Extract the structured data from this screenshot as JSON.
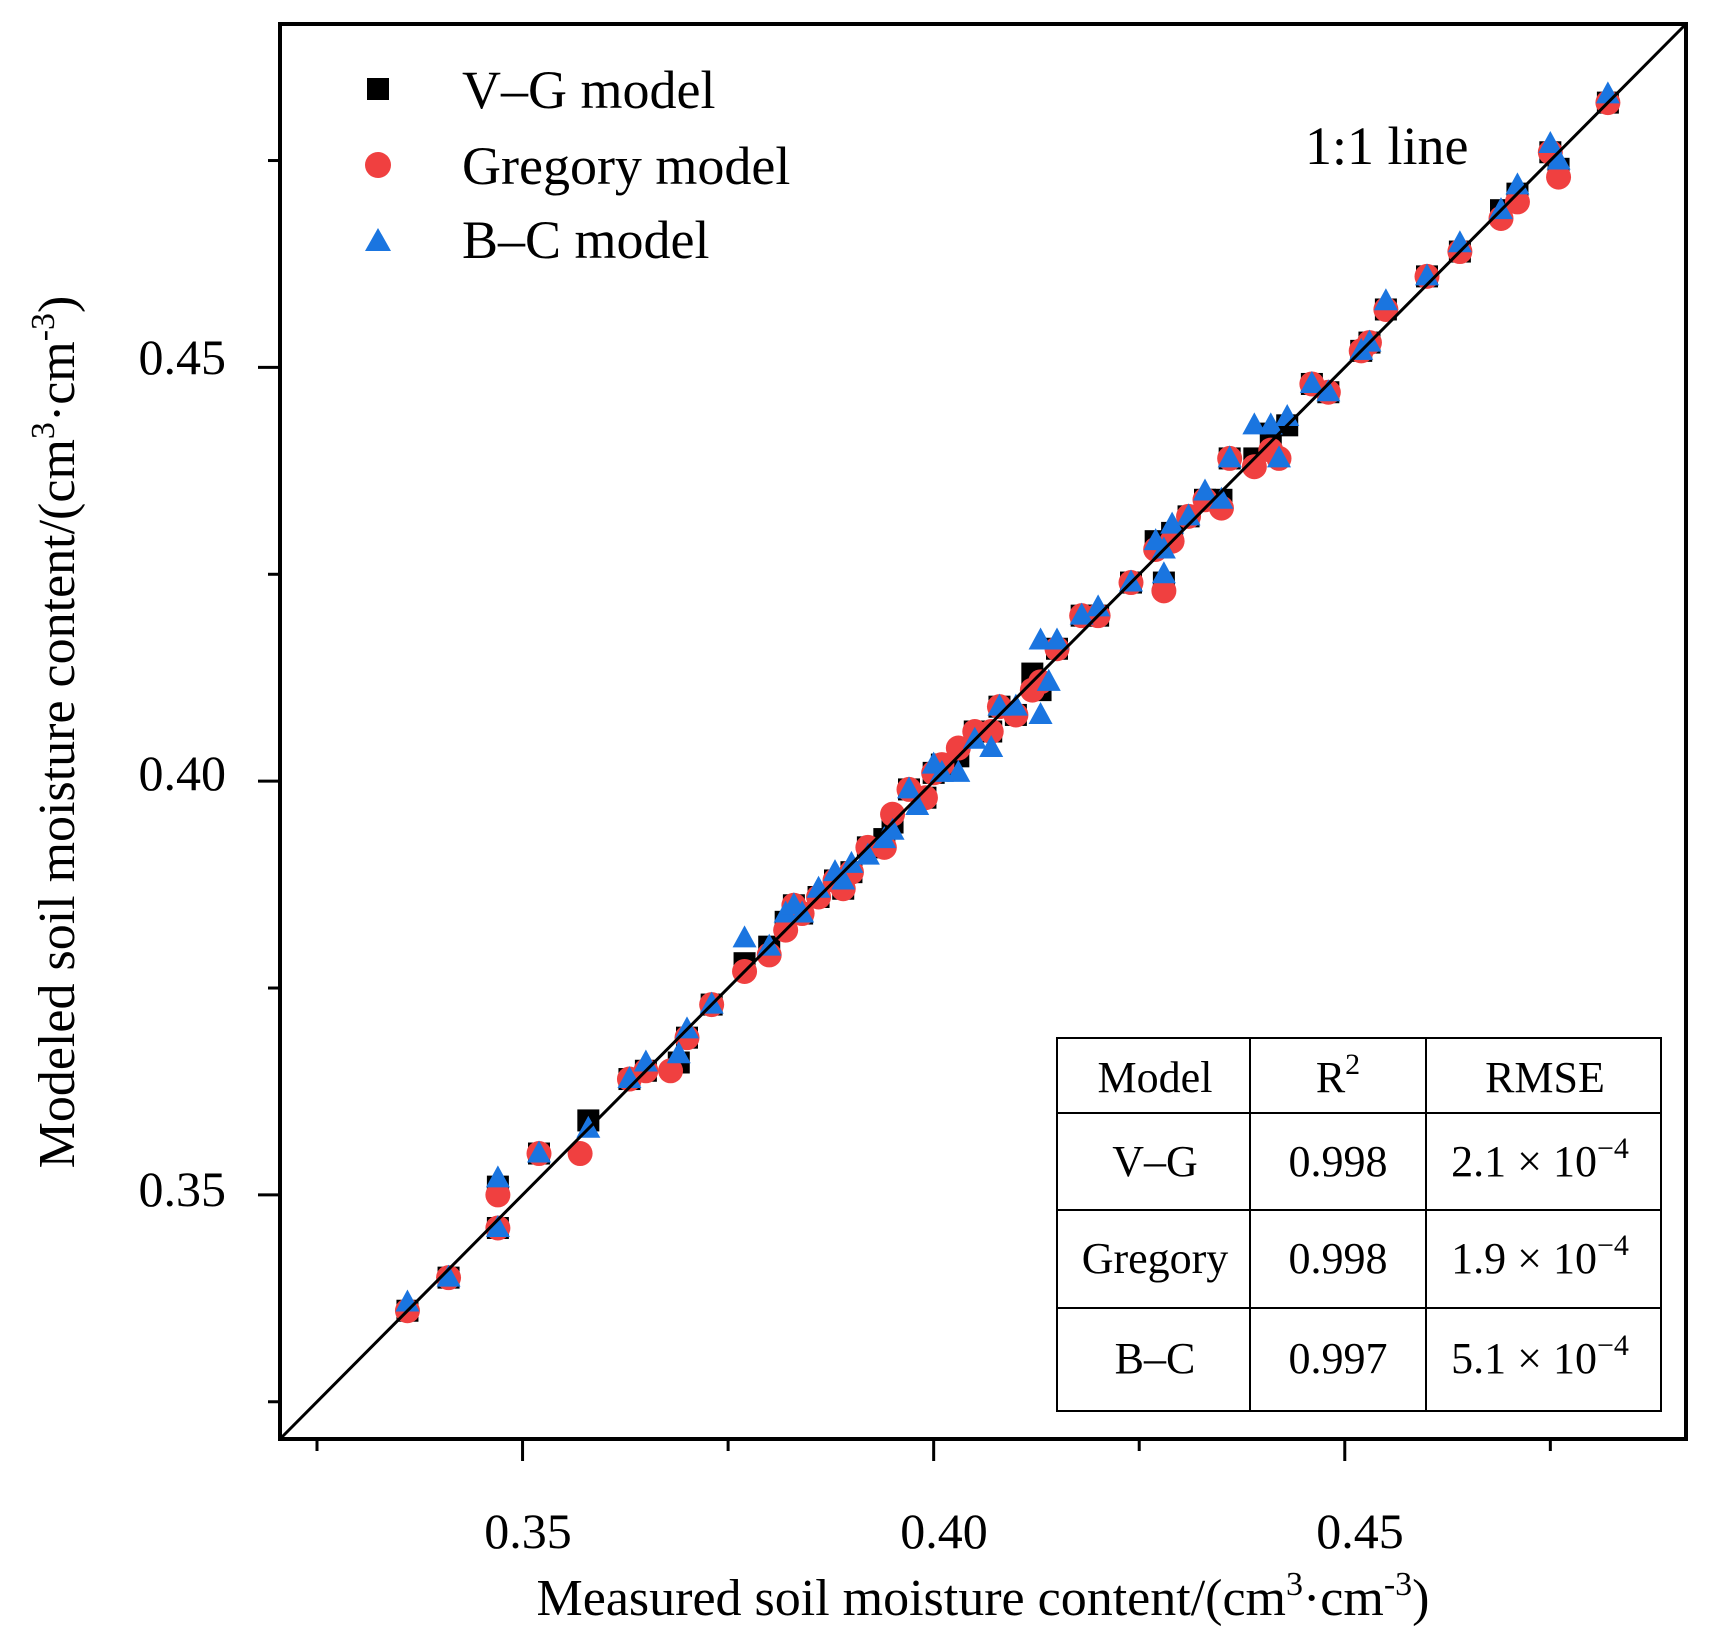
{
  "chart_data": {
    "type": "scatter",
    "title": "",
    "xlabel": {
      "text": "Measured soil moisture content/(cm",
      "sup1": "3",
      "mid": "·cm",
      "sup2": "-3",
      "end": ")"
    },
    "ylabel": {
      "text": "Modeled soil moisture content/(cm",
      "sup1": "3",
      "mid": "·cm",
      "sup2": "-3",
      "end": ")"
    },
    "xlim": [
      0.3205,
      0.4915
    ],
    "ylim": [
      0.3205,
      0.4915
    ],
    "xticks_major": [
      0.35,
      0.4,
      0.45
    ],
    "xtick_labels": [
      "0.35",
      "0.40",
      "0.45"
    ],
    "yticks_major": [
      0.35,
      0.4,
      0.45
    ],
    "ytick_labels": [
      "0.35",
      "0.40",
      "0.45"
    ],
    "ticks_minor": [
      0.325,
      0.375,
      0.425,
      0.475
    ],
    "annotation": "1:1 line",
    "reference_line": "y = x",
    "legend": [
      {
        "name": "V–G model",
        "marker": "square",
        "color": "#000000"
      },
      {
        "name": "Gregory model",
        "marker": "circle",
        "color": "#f04040"
      },
      {
        "name": "B–C model",
        "marker": "triangle",
        "color": "#1a75e0"
      }
    ],
    "series": [
      {
        "name": "V–G model",
        "points": [
          [
            0.336,
            0.336
          ],
          [
            0.341,
            0.34
          ],
          [
            0.347,
            0.346
          ],
          [
            0.347,
            0.351
          ],
          [
            0.352,
            0.355
          ],
          [
            0.358,
            0.359
          ],
          [
            0.363,
            0.364
          ],
          [
            0.365,
            0.365
          ],
          [
            0.369,
            0.366
          ],
          [
            0.37,
            0.369
          ],
          [
            0.373,
            0.373
          ],
          [
            0.377,
            0.378
          ],
          [
            0.38,
            0.38
          ],
          [
            0.382,
            0.383
          ],
          [
            0.383,
            0.385
          ],
          [
            0.384,
            0.384
          ],
          [
            0.386,
            0.386
          ],
          [
            0.388,
            0.388
          ],
          [
            0.389,
            0.387
          ],
          [
            0.39,
            0.389
          ],
          [
            0.392,
            0.392
          ],
          [
            0.394,
            0.393
          ],
          [
            0.395,
            0.395
          ],
          [
            0.397,
            0.399
          ],
          [
            0.399,
            0.398
          ],
          [
            0.4,
            0.401
          ],
          [
            0.401,
            0.402
          ],
          [
            0.403,
            0.403
          ],
          [
            0.405,
            0.406
          ],
          [
            0.407,
            0.406
          ],
          [
            0.408,
            0.409
          ],
          [
            0.41,
            0.408
          ],
          [
            0.412,
            0.413
          ],
          [
            0.413,
            0.411
          ],
          [
            0.415,
            0.416
          ],
          [
            0.418,
            0.42
          ],
          [
            0.42,
            0.42
          ],
          [
            0.424,
            0.424
          ],
          [
            0.427,
            0.429
          ],
          [
            0.428,
            0.424
          ],
          [
            0.429,
            0.43
          ],
          [
            0.431,
            0.432
          ],
          [
            0.433,
            0.434
          ],
          [
            0.435,
            0.434
          ],
          [
            0.436,
            0.439
          ],
          [
            0.439,
            0.439
          ],
          [
            0.441,
            0.442
          ],
          [
            0.443,
            0.443
          ],
          [
            0.446,
            0.448
          ],
          [
            0.448,
            0.447
          ],
          [
            0.452,
            0.452
          ],
          [
            0.453,
            0.453
          ],
          [
            0.455,
            0.457
          ],
          [
            0.46,
            0.461
          ],
          [
            0.464,
            0.464
          ],
          [
            0.469,
            0.469
          ],
          [
            0.471,
            0.471
          ],
          [
            0.475,
            0.476
          ],
          [
            0.476,
            0.474
          ],
          [
            0.482,
            0.482
          ]
        ]
      },
      {
        "name": "Gregory model",
        "points": [
          [
            0.336,
            0.336
          ],
          [
            0.341,
            0.34
          ],
          [
            0.347,
            0.346
          ],
          [
            0.347,
            0.35
          ],
          [
            0.352,
            0.355
          ],
          [
            0.357,
            0.355
          ],
          [
            0.363,
            0.364
          ],
          [
            0.365,
            0.365
          ],
          [
            0.368,
            0.365
          ],
          [
            0.37,
            0.369
          ],
          [
            0.373,
            0.373
          ],
          [
            0.377,
            0.377
          ],
          [
            0.38,
            0.379
          ],
          [
            0.382,
            0.382
          ],
          [
            0.383,
            0.385
          ],
          [
            0.384,
            0.384
          ],
          [
            0.386,
            0.386
          ],
          [
            0.388,
            0.388
          ],
          [
            0.389,
            0.387
          ],
          [
            0.39,
            0.389
          ],
          [
            0.392,
            0.392
          ],
          [
            0.394,
            0.392
          ],
          [
            0.395,
            0.396
          ],
          [
            0.397,
            0.399
          ],
          [
            0.399,
            0.398
          ],
          [
            0.4,
            0.401
          ],
          [
            0.401,
            0.402
          ],
          [
            0.403,
            0.404
          ],
          [
            0.405,
            0.406
          ],
          [
            0.407,
            0.406
          ],
          [
            0.408,
            0.409
          ],
          [
            0.41,
            0.408
          ],
          [
            0.412,
            0.411
          ],
          [
            0.413,
            0.412
          ],
          [
            0.415,
            0.416
          ],
          [
            0.418,
            0.42
          ],
          [
            0.42,
            0.42
          ],
          [
            0.424,
            0.424
          ],
          [
            0.427,
            0.428
          ],
          [
            0.428,
            0.423
          ],
          [
            0.429,
            0.429
          ],
          [
            0.431,
            0.432
          ],
          [
            0.433,
            0.434
          ],
          [
            0.435,
            0.433
          ],
          [
            0.436,
            0.439
          ],
          [
            0.439,
            0.438
          ],
          [
            0.441,
            0.44
          ],
          [
            0.442,
            0.439
          ],
          [
            0.446,
            0.448
          ],
          [
            0.448,
            0.447
          ],
          [
            0.452,
            0.452
          ],
          [
            0.453,
            0.453
          ],
          [
            0.455,
            0.457
          ],
          [
            0.46,
            0.461
          ],
          [
            0.464,
            0.464
          ],
          [
            0.469,
            0.468
          ],
          [
            0.471,
            0.47
          ],
          [
            0.475,
            0.476
          ],
          [
            0.476,
            0.473
          ],
          [
            0.482,
            0.482
          ]
        ]
      },
      {
        "name": "B–C model",
        "points": [
          [
            0.336,
            0.337
          ],
          [
            0.341,
            0.34
          ],
          [
            0.347,
            0.346
          ],
          [
            0.347,
            0.352
          ],
          [
            0.352,
            0.355
          ],
          [
            0.358,
            0.358
          ],
          [
            0.363,
            0.364
          ],
          [
            0.365,
            0.366
          ],
          [
            0.369,
            0.367
          ],
          [
            0.37,
            0.37
          ],
          [
            0.373,
            0.373
          ],
          [
            0.377,
            0.381
          ],
          [
            0.38,
            0.38
          ],
          [
            0.382,
            0.384
          ],
          [
            0.383,
            0.385
          ],
          [
            0.384,
            0.384
          ],
          [
            0.386,
            0.387
          ],
          [
            0.388,
            0.389
          ],
          [
            0.389,
            0.388
          ],
          [
            0.39,
            0.39
          ],
          [
            0.392,
            0.391
          ],
          [
            0.394,
            0.393
          ],
          [
            0.395,
            0.394
          ],
          [
            0.397,
            0.399
          ],
          [
            0.398,
            0.397
          ],
          [
            0.4,
            0.402
          ],
          [
            0.401,
            0.401
          ],
          [
            0.403,
            0.401
          ],
          [
            0.405,
            0.405
          ],
          [
            0.407,
            0.404
          ],
          [
            0.408,
            0.409
          ],
          [
            0.41,
            0.409
          ],
          [
            0.413,
            0.417
          ],
          [
            0.413,
            0.408
          ],
          [
            0.414,
            0.412
          ],
          [
            0.415,
            0.417
          ],
          [
            0.418,
            0.42
          ],
          [
            0.42,
            0.421
          ],
          [
            0.424,
            0.424
          ],
          [
            0.427,
            0.429
          ],
          [
            0.428,
            0.425
          ],
          [
            0.428,
            0.428
          ],
          [
            0.429,
            0.431
          ],
          [
            0.431,
            0.432
          ],
          [
            0.433,
            0.435
          ],
          [
            0.435,
            0.434
          ],
          [
            0.436,
            0.439
          ],
          [
            0.439,
            0.443
          ],
          [
            0.441,
            0.443
          ],
          [
            0.442,
            0.439
          ],
          [
            0.443,
            0.444
          ],
          [
            0.446,
            0.448
          ],
          [
            0.448,
            0.447
          ],
          [
            0.452,
            0.452
          ],
          [
            0.453,
            0.453
          ],
          [
            0.455,
            0.458
          ],
          [
            0.46,
            0.461
          ],
          [
            0.464,
            0.465
          ],
          [
            0.469,
            0.469
          ],
          [
            0.471,
            0.472
          ],
          [
            0.475,
            0.477
          ],
          [
            0.476,
            0.475
          ],
          [
            0.482,
            0.483
          ]
        ]
      }
    ],
    "table": {
      "header": {
        "model": "Model",
        "r2": "R",
        "r2_sup": "2",
        "rmse": "RMSE"
      },
      "rows": [
        {
          "model": "V–G",
          "r2": "0.998",
          "rmse": "2.1 × 10",
          "rmse_sup": "−4"
        },
        {
          "model": "Gregory",
          "r2": "0.998",
          "rmse": "1.9 × 10",
          "rmse_sup": "−4"
        },
        {
          "model": "B–C",
          "r2": "0.997",
          "rmse": "5.1 × 10",
          "rmse_sup": "−4"
        }
      ]
    }
  }
}
